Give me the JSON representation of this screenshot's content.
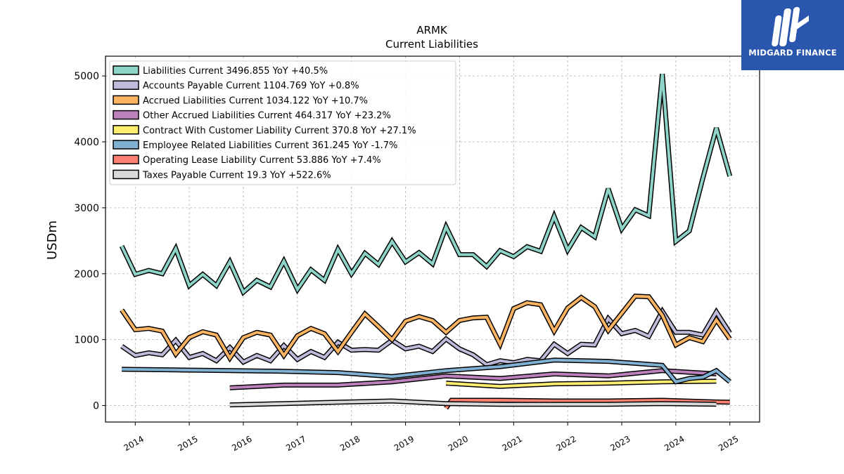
{
  "brand": {
    "name": "MIDGARD FINANCE",
    "bg_color": "#2a57ad",
    "icon": "midgard-logo-icon"
  },
  "chart_data": {
    "type": "line",
    "title": "ARMK",
    "subtitle": "Current  Liabilities",
    "ylabel": "USDm",
    "xlabel": "",
    "ylim": [
      -250,
      5300
    ],
    "xlim": [
      2013.45,
      2025.55
    ],
    "grid": true,
    "legend_position": "top-left",
    "yticks": [
      0,
      1000,
      2000,
      3000,
      4000,
      5000
    ],
    "yticklabels": [
      "0",
      "1000",
      "2000",
      "3000",
      "4000",
      "5000"
    ],
    "xticks": [
      2014,
      2015,
      2016,
      2017,
      2018,
      2019,
      2020,
      2021,
      2022,
      2023,
      2024,
      2025
    ],
    "xticklabels": [
      "2014",
      "2015",
      "2016",
      "2017",
      "2018",
      "2019",
      "2020",
      "2021",
      "2022",
      "2023",
      "2024",
      "2025"
    ],
    "series": [
      {
        "name": "Liabilities Current  3496.855 YoY +40.5%",
        "color": "#8dd3c7",
        "x": [
          2013.75,
          2014.0,
          2014.25,
          2014.5,
          2014.75,
          2015.0,
          2015.25,
          2015.5,
          2015.75,
          2016.0,
          2016.25,
          2016.5,
          2016.75,
          2017.0,
          2017.25,
          2017.5,
          2017.75,
          2018.0,
          2018.25,
          2018.5,
          2018.75,
          2019.0,
          2019.25,
          2019.5,
          2019.75,
          2020.0,
          2020.25,
          2020.5,
          2020.75,
          2021.0,
          2021.25,
          2021.5,
          2021.75,
          2022.0,
          2022.25,
          2022.5,
          2022.75,
          2023.0,
          2023.25,
          2023.5,
          2023.75,
          2024.0,
          2024.25,
          2024.5,
          2024.75,
          2025.0
        ],
        "y": [
          2420,
          1990,
          2050,
          2000,
          2380,
          1820,
          1990,
          1820,
          2180,
          1720,
          1900,
          1800,
          2190,
          1760,
          2060,
          1900,
          2370,
          2000,
          2310,
          2140,
          2490,
          2180,
          2320,
          2150,
          2710,
          2290,
          2290,
          2110,
          2350,
          2260,
          2410,
          2340,
          2870,
          2360,
          2700,
          2560,
          3290,
          2680,
          2970,
          2880,
          5030,
          2490,
          2650,
          3450,
          4210,
          3480
        ]
      },
      {
        "name": "Accounts Payable Current  1104.769 YoY +0.8%",
        "color": "#bebada",
        "x": [
          2013.75,
          2014.0,
          2014.25,
          2014.5,
          2014.75,
          2015.0,
          2015.25,
          2015.5,
          2015.75,
          2016.0,
          2016.25,
          2016.5,
          2016.75,
          2017.0,
          2017.25,
          2017.5,
          2017.75,
          2018.0,
          2018.25,
          2018.5,
          2018.75,
          2019.0,
          2019.25,
          2019.5,
          2019.75,
          2020.0,
          2020.25,
          2020.5,
          2020.75,
          2021.0,
          2021.25,
          2021.5,
          2021.75,
          2022.0,
          2022.25,
          2022.5,
          2022.75,
          2023.0,
          2023.25,
          2023.5,
          2023.75,
          2024.0,
          2024.25,
          2024.5,
          2024.75,
          2025.0
        ],
        "y": [
          900,
          760,
          800,
          770,
          990,
          730,
          790,
          680,
          880,
          660,
          760,
          680,
          910,
          700,
          820,
          730,
          960,
          840,
          850,
          840,
          990,
          860,
          900,
          820,
          1010,
          860,
          770,
          620,
          680,
          650,
          700,
          680,
          930,
          790,
          930,
          920,
          1320,
          1090,
          1140,
          1050,
          1430,
          1110,
          1110,
          1070,
          1420,
          1100
        ]
      },
      {
        "name": "Accrued Liabilities Current  1034.122 YoY +10.7%",
        "color": "#fdb462",
        "x": [
          2013.75,
          2014.0,
          2014.25,
          2014.5,
          2014.75,
          2015.0,
          2015.25,
          2015.5,
          2015.75,
          2016.0,
          2016.25,
          2016.5,
          2016.75,
          2017.0,
          2017.25,
          2017.5,
          2017.75,
          2018.0,
          2018.25,
          2018.5,
          2018.75,
          2019.0,
          2019.25,
          2019.5,
          2019.75,
          2020.0,
          2020.25,
          2020.5,
          2020.75,
          2021.0,
          2021.25,
          2021.5,
          2021.75,
          2022.0,
          2022.25,
          2022.5,
          2022.75,
          2023.0,
          2023.25,
          2023.5,
          2023.75,
          2024.0,
          2024.25,
          2024.5,
          2024.75,
          2025.0
        ],
        "y": [
          1450,
          1150,
          1170,
          1130,
          780,
          1030,
          1120,
          1070,
          720,
          1030,
          1110,
          1070,
          760,
          1060,
          1170,
          1090,
          820,
          1110,
          1390,
          1200,
          1000,
          1280,
          1350,
          1290,
          1110,
          1290,
          1330,
          1340,
          930,
          1470,
          1560,
          1530,
          1130,
          1480,
          1640,
          1500,
          1140,
          1400,
          1660,
          1650,
          1370,
          920,
          1030,
          970,
          1300,
          1010
        ]
      },
      {
        "name": "Other Accrued Liabilities Current  464.317 YoY +23.2%",
        "color": "#bc80bd",
        "x": [
          2015.75,
          2016.75,
          2017.75,
          2018.75,
          2019.75,
          2020.75,
          2021.75,
          2022.75,
          2023.75,
          2024.75
        ],
        "y": [
          270,
          310,
          310,
          360,
          450,
          410,
          480,
          450,
          530,
          480
        ]
      },
      {
        "name": "Contract With Customer Liability Current  370.8 YoY +27.1%",
        "color": "#ffed6f",
        "x": [
          2019.75,
          2020.75,
          2021.75,
          2022.75,
          2023.75,
          2024.75
        ],
        "y": [
          340,
          290,
          330,
          340,
          360,
          370
        ]
      },
      {
        "name": "Employee Related Liabilities Current  361.245 YoY -1.7%",
        "color": "#80b1d3",
        "x": [
          2013.75,
          2014.75,
          2015.75,
          2016.75,
          2017.75,
          2018.75,
          2019.75,
          2020.75,
          2021.75,
          2022.75,
          2023.75,
          2024.0,
          2024.25,
          2024.5,
          2024.75,
          2025.0
        ],
        "y": [
          550,
          540,
          530,
          520,
          500,
          440,
          530,
          590,
          690,
          670,
          610,
          360,
          410,
          430,
          530,
          360
        ]
      },
      {
        "name": "Operating Lease Liability Current  53.886 YoY +7.4%",
        "color": "#fb8072",
        "x": [
          2019.75,
          2019.85,
          2020.75,
          2021.75,
          2022.75,
          2023.75,
          2024.75,
          2025.0
        ],
        "y": [
          -40,
          80,
          80,
          70,
          70,
          80,
          55,
          50
        ]
      },
      {
        "name": "Taxes Payable Current  19.3 YoY +522.6%",
        "color": "#d9d9d9",
        "x": [
          2015.75,
          2016.75,
          2017.75,
          2018.75,
          2019.75,
          2020.75,
          2021.75,
          2022.75,
          2023.75,
          2024.75
        ],
        "y": [
          10,
          30,
          50,
          70,
          30,
          20,
          20,
          20,
          30,
          20
        ]
      }
    ]
  }
}
